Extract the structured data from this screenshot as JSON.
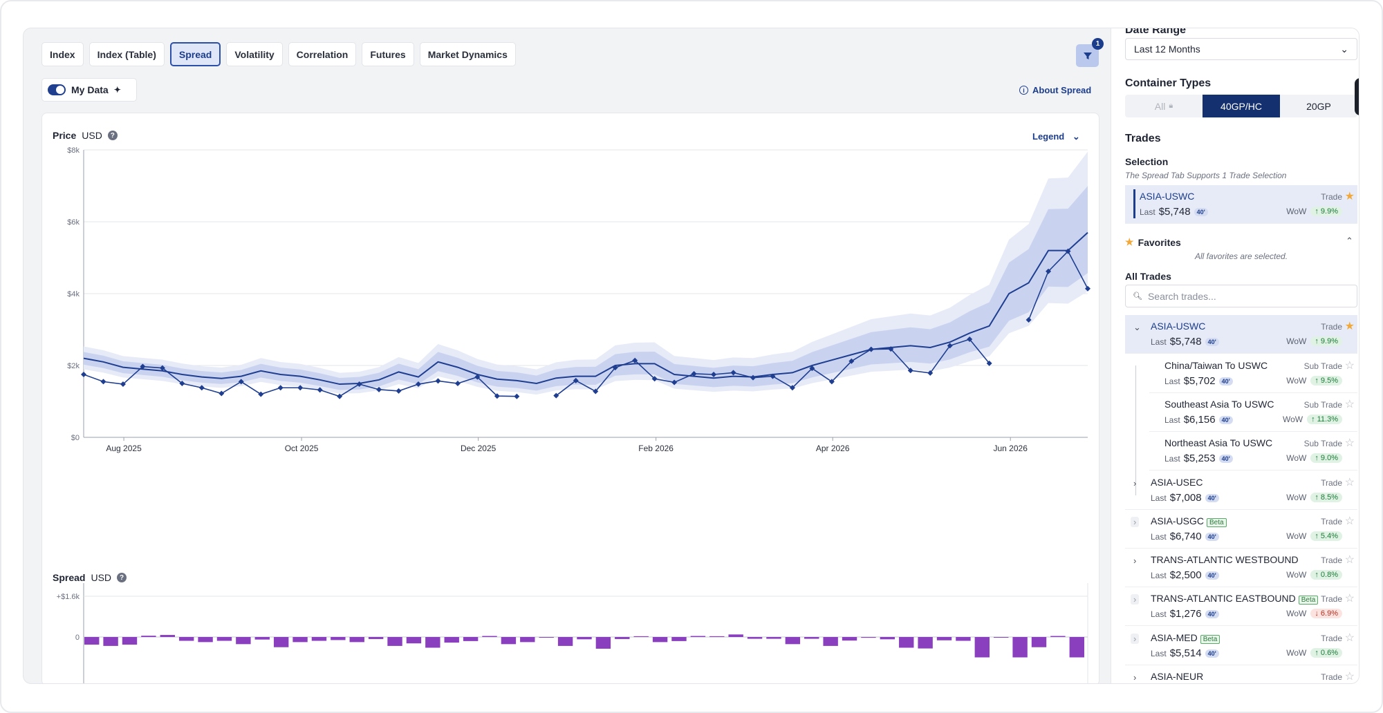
{
  "tabs": [
    "Index",
    "Index (Table)",
    "Spread",
    "Volatility",
    "Correlation",
    "Futures",
    "Market Dynamics"
  ],
  "active_tab": "Spread",
  "my_data_label": "My Data",
  "about_label": "About Spread",
  "filter_badge": "1",
  "price_chart": {
    "title": "Price",
    "unit": "USD",
    "legend_label": "Legend"
  },
  "spread_chart": {
    "title": "Spread",
    "unit": "USD"
  },
  "chart_data": [
    {
      "type": "line",
      "title": "Price",
      "ylabel": "USD",
      "ylim": [
        0,
        8000
      ],
      "y_ticks": [
        "$0",
        "$2k",
        "$4k",
        "$6k",
        "$8k"
      ],
      "x_ticks": [
        "Aug 2025",
        "Oct 2025",
        "Dec 2025",
        "Feb 2026",
        "Apr 2026",
        "Jun 2026"
      ],
      "series": [
        {
          "kind": "smoothed-line",
          "values": [
            2200,
            2100,
            1950,
            1900,
            1850,
            1750,
            1680,
            1640,
            1700,
            1850,
            1750,
            1700,
            1600,
            1480,
            1500,
            1600,
            1820,
            1680,
            2100,
            1950,
            1750,
            1620,
            1580,
            1500,
            1650,
            1700,
            1700,
            2000,
            2050,
            2050,
            1750,
            1700,
            1650,
            1700,
            1680,
            1750,
            1800,
            2000,
            2150,
            2300,
            2450,
            2500,
            2550,
            2500,
            2650,
            2900,
            3100,
            4000,
            4300,
            5200,
            5200,
            5700
          ]
        },
        {
          "kind": "marker-line",
          "values": [
            1750,
            1550,
            1480,
            1970,
            1930,
            1500,
            1380,
            1220,
            1550,
            1200,
            1380,
            1380,
            1320,
            1140,
            1480,
            1330,
            1290,
            1480,
            1570,
            1500,
            1680,
            1150,
            1140,
            null,
            1160,
            1580,
            1280,
            1940,
            2140,
            1630,
            1530,
            1770,
            1750,
            1800,
            1660,
            1700,
            1380,
            1920,
            1550,
            2120,
            2450,
            2460,
            1860,
            1790,
            2550,
            2730,
            2060,
            null,
            3270,
            4620,
            5180,
            4140
          ]
        }
      ]
    },
    {
      "type": "bar",
      "title": "Spread",
      "ylabel": "USD",
      "y_ticks": [
        "+$1.6k",
        "0"
      ],
      "values": [
        -300,
        -350,
        -300,
        50,
        80,
        -150,
        -200,
        -150,
        -280,
        -100,
        -400,
        -200,
        -150,
        -120,
        -200,
        -80,
        -350,
        -250,
        -420,
        -220,
        -160,
        40,
        -280,
        -200,
        0,
        -350,
        -90,
        -460,
        -80,
        30,
        -200,
        -160,
        40,
        30,
        100,
        -70,
        -70,
        -280,
        -70,
        -350,
        -140,
        -30,
        -90,
        -420,
        -450,
        -130,
        -150,
        -800,
        0,
        -800,
        -400,
        40,
        -800
      ]
    }
  ],
  "panel": {
    "date_range_label": "Date Range",
    "date_range_value": "Last 12 Months",
    "container_types_label": "Container Types",
    "container_types": [
      "All",
      "40GP/HC",
      "20GP"
    ],
    "trades_label": "Trades",
    "selection_label": "Selection",
    "selection_hint": "The Spread Tab Supports 1 Trade Selection",
    "selected": {
      "name": "ASIA-USWC",
      "type": "Trade",
      "last_label": "Last",
      "price": "$5,748",
      "size": "40'",
      "wow_label": "WoW",
      "wow": "↑ 9.9%"
    },
    "favorites_label": "Favorites",
    "favorites_hint": "All favorites are selected.",
    "all_trades_label": "All Trades",
    "search_placeholder": "Search trades...",
    "trades": [
      {
        "name": "ASIA-USWC",
        "type": "Trade",
        "price": "$5,748",
        "size": "40'",
        "wow": "↑ 9.9%"
      },
      {
        "name": "China/Taiwan To USWC",
        "type": "Sub Trade",
        "price": "$5,702",
        "size": "40'",
        "wow": "↑ 9.5%"
      },
      {
        "name": "Southeast Asia To USWC",
        "type": "Sub Trade",
        "price": "$6,156",
        "size": "40'",
        "wow": "↑ 11.3%"
      },
      {
        "name": "Northeast Asia To USWC",
        "type": "Sub Trade",
        "price": "$5,253",
        "size": "40'",
        "wow": "↑ 9.0%"
      },
      {
        "name": "ASIA-USEC",
        "type": "Trade",
        "price": "$7,008",
        "size": "40'",
        "wow": "↑ 8.5%"
      },
      {
        "name": "ASIA-USGC",
        "type": "Trade",
        "price": "$6,740",
        "size": "40'",
        "wow": "↑ 5.4%",
        "beta": "Beta"
      },
      {
        "name": "TRANS-ATLANTIC WESTBOUND",
        "type": "Trade",
        "price": "$2,500",
        "size": "40'",
        "wow": "↑ 0.8%"
      },
      {
        "name": "TRANS-ATLANTIC EASTBOUND",
        "type": "Trade",
        "price": "$1,276",
        "size": "40'",
        "wow": "↓ 6.9%",
        "beta": "Beta"
      },
      {
        "name": "ASIA-MED",
        "type": "Trade",
        "price": "$5,514",
        "size": "40'",
        "wow": "↑ 0.6%",
        "beta": "Beta"
      },
      {
        "name": "ASIA-NEUR",
        "type": "Trade"
      }
    ],
    "last_label": "Last",
    "wow_label": "WoW"
  }
}
